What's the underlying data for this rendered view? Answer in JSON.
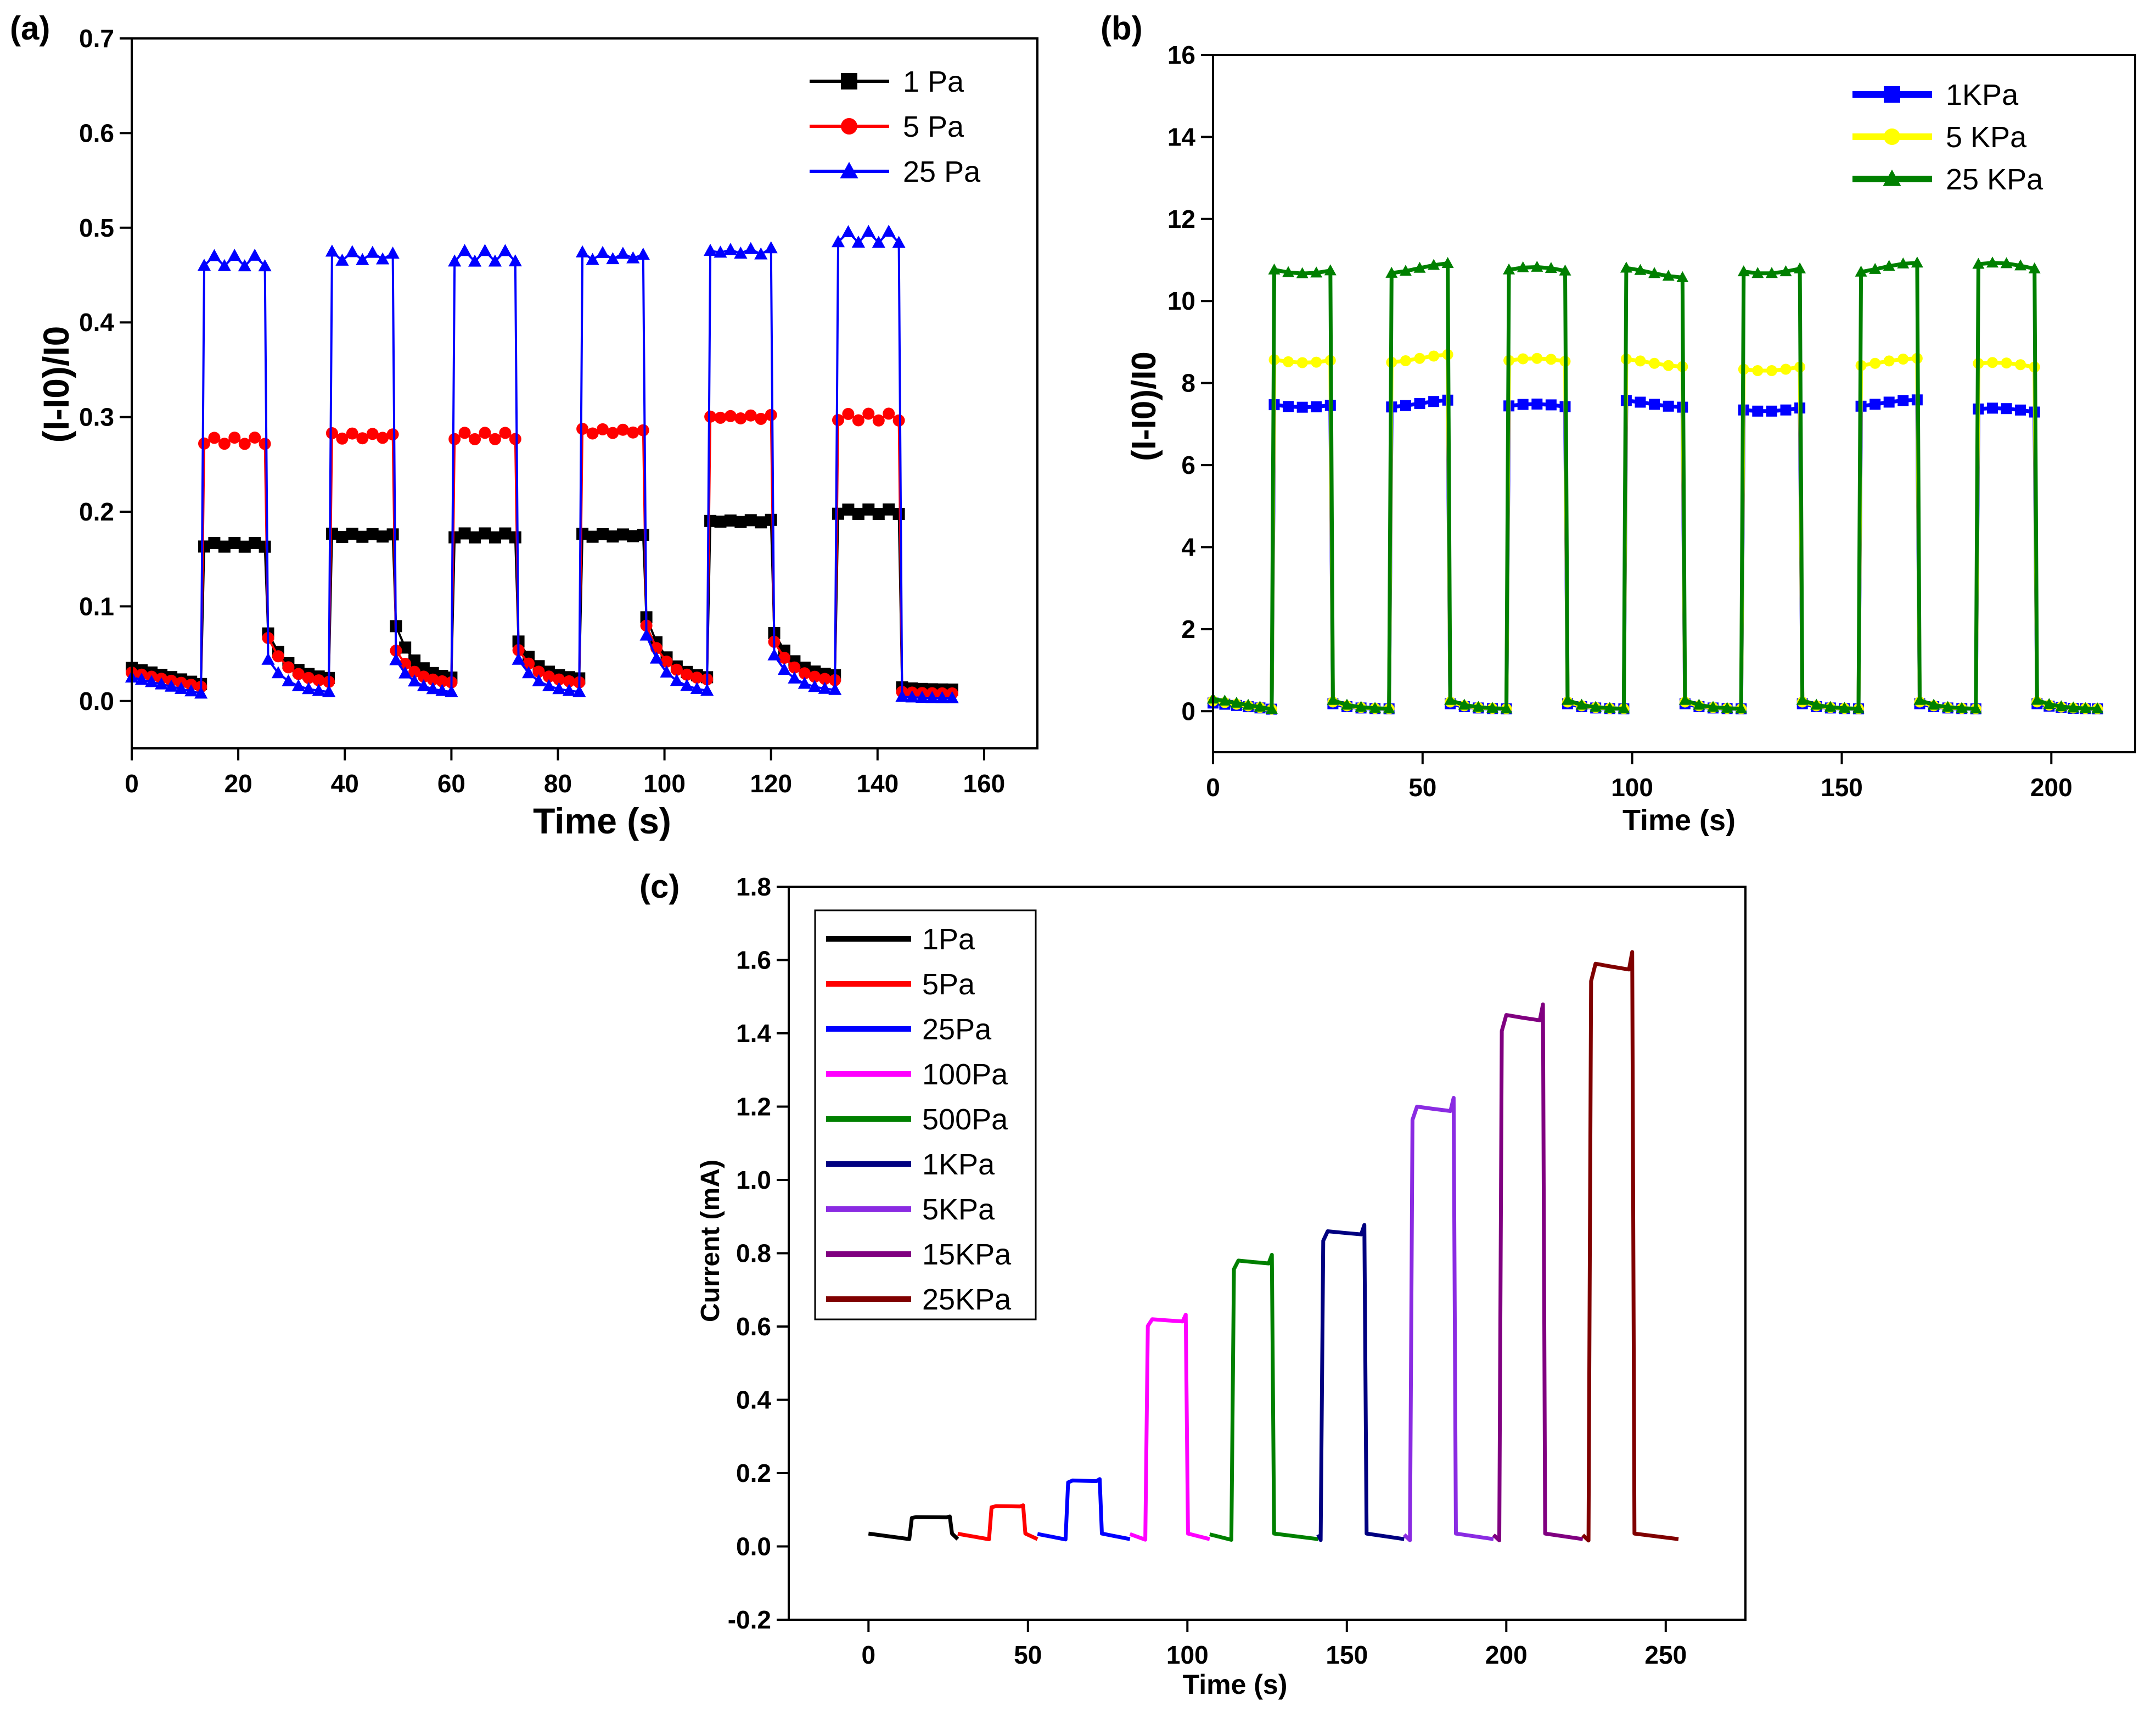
{
  "chart_data": [
    {
      "panel": "(a)",
      "type": "line",
      "xlabel": "Time (s)",
      "ylabel": "(I-I0)/I0",
      "xlim": [
        0,
        170
      ],
      "ylim": [
        -0.05,
        0.7
      ],
      "xticks": [
        "0",
        "20",
        "40",
        "60",
        "80",
        "100",
        "120",
        "140",
        "160"
      ],
      "yticks": [
        "0.0",
        "0.1",
        "0.2",
        "0.3",
        "0.4",
        "0.5",
        "0.6",
        "0.7"
      ],
      "legend_position": "top-right",
      "cycles": [
        [
          13,
          25
        ],
        [
          37,
          49
        ],
        [
          60,
          72
        ],
        [
          84,
          96
        ],
        [
          108,
          120
        ],
        [
          132,
          144
        ]
      ],
      "end_time": 154,
      "marker_step": 1.8,
      "series": [
        {
          "name": "1 Pa",
          "color": "#000000",
          "marker": "square",
          "baseline_start": 0.035,
          "baseline_end": 0.018,
          "on_levels": [
            0.165,
            0.175,
            0.175,
            0.175,
            0.19,
            0.2
          ],
          "relax_start": [
            0.08,
            0.09,
            0.07,
            0.1,
            0.08,
            0.015
          ],
          "relax_end": [
            0.022,
            0.022,
            0.022,
            0.022,
            0.025,
            0.012
          ]
        },
        {
          "name": "5 Pa",
          "color": "#ff0000",
          "marker": "circle",
          "baseline_start": 0.03,
          "baseline_end": 0.015,
          "on_levels": [
            0.275,
            0.28,
            0.28,
            0.285,
            0.3,
            0.3
          ],
          "relax_start": [
            0.075,
            0.06,
            0.06,
            0.09,
            0.07,
            0.01
          ],
          "relax_end": [
            0.018,
            0.018,
            0.018,
            0.02,
            0.02,
            0.008
          ]
        },
        {
          "name": "25 Pa",
          "color": "#0000ff",
          "marker": "triangle",
          "baseline_start": 0.025,
          "baseline_end": 0.008,
          "on_levels": [
            0.465,
            0.47,
            0.47,
            0.47,
            0.475,
            0.49
          ],
          "relax_start": [
            0.05,
            0.05,
            0.05,
            0.08,
            0.055,
            0.005
          ],
          "relax_end": [
            0.008,
            0.008,
            0.008,
            0.008,
            0.01,
            0.003
          ]
        }
      ]
    },
    {
      "panel": "(b)",
      "type": "line",
      "xlabel": "Time (s)",
      "ylabel": "(I-I0)/I0",
      "xlim": [
        0,
        220
      ],
      "ylim": [
        -1,
        16
      ],
      "xticks": [
        "0",
        "50",
        "100",
        "150",
        "200"
      ],
      "yticks": [
        "0",
        "2",
        "4",
        "6",
        "8",
        "10",
        "12",
        "14",
        "16"
      ],
      "legend_position": "top-right",
      "cycles": [
        [
          14,
          28
        ],
        [
          42,
          56
        ],
        [
          70,
          84
        ],
        [
          98,
          112
        ],
        [
          126,
          140
        ],
        [
          154,
          168
        ],
        [
          182,
          196
        ]
      ],
      "end_time": 211,
      "marker_step": 3,
      "series": [
        {
          "name": "1KPa",
          "color": "#0000ff",
          "marker": "square",
          "baseline_start": 0.2,
          "baseline_end": 0.05,
          "on_levels": [
            7.5,
            7.5,
            7.4,
            7.5,
            7.4,
            7.5,
            7.3
          ]
        },
        {
          "name": "5 KPa",
          "color": "#ffff00",
          "marker": "circle",
          "baseline_start": 0.25,
          "baseline_end": 0.05,
          "on_levels": [
            8.6,
            8.6,
            8.5,
            8.5,
            8.4,
            8.5,
            8.4
          ]
        },
        {
          "name": "25 KPa",
          "color": "#008000",
          "marker": "triangle",
          "baseline_start": 0.3,
          "baseline_end": 0.05,
          "on_levels": [
            10.8,
            10.8,
            10.7,
            10.7,
            10.8,
            10.8,
            10.8
          ]
        }
      ]
    },
    {
      "panel": "(c)",
      "type": "line",
      "xlabel": "Time (s)",
      "ylabel": "Current (mA)",
      "xlim": [
        -25,
        275
      ],
      "ylim": [
        -0.2,
        1.8
      ],
      "xticks": [
        "0",
        "50",
        "100",
        "150",
        "200",
        "250"
      ],
      "yticks": [
        "-0.2",
        "0.0",
        "0.2",
        "0.4",
        "0.6",
        "0.8",
        "1.0",
        "1.2",
        "1.4",
        "1.6",
        "1.8"
      ],
      "legend_position": "top-left",
      "series": [
        {
          "name": "1Pa",
          "color": "#000000",
          "t_start": 0,
          "t_on": 13,
          "t_off": 26,
          "t_end": 28,
          "level": 0.08
        },
        {
          "name": "5Pa",
          "color": "#ff0000",
          "t_start": 28,
          "t_on": 38,
          "t_off": 49,
          "t_end": 53,
          "level": 0.11
        },
        {
          "name": "25Pa",
          "color": "#0000ff",
          "t_start": 53,
          "t_on": 62,
          "t_off": 73,
          "t_end": 82,
          "level": 0.18
        },
        {
          "name": "100Pa",
          "color": "#ff00ff",
          "t_start": 82,
          "t_on": 87,
          "t_off": 100,
          "t_end": 107,
          "level": 0.62
        },
        {
          "name": "500Pa",
          "color": "#008000",
          "t_start": 107,
          "t_on": 114,
          "t_off": 127,
          "t_end": 141,
          "level": 0.78
        },
        {
          "name": "1KPa",
          "color": "#000080",
          "t_start": 141,
          "t_on": 142,
          "t_off": 156,
          "t_end": 168,
          "level": 0.86
        },
        {
          "name": "5KPa",
          "color": "#8a2be2",
          "t_start": 168,
          "t_on": 170,
          "t_off": 184,
          "t_end": 196,
          "level": 1.2
        },
        {
          "name": "15KPa",
          "color": "#800080",
          "t_start": 196,
          "t_on": 198,
          "t_off": 212,
          "t_end": 224,
          "level": 1.45
        },
        {
          "name": "25KPa",
          "color": "#800000",
          "t_start": 224,
          "t_on": 226,
          "t_off": 240,
          "t_end": 254,
          "level": 1.59
        }
      ]
    }
  ]
}
